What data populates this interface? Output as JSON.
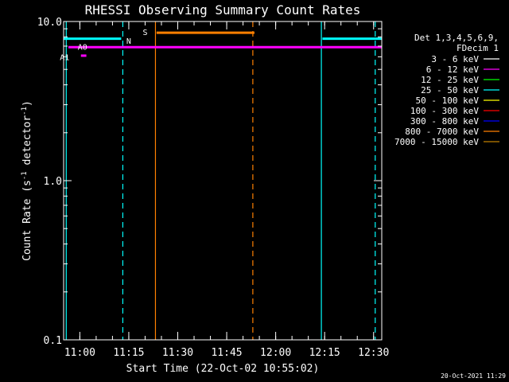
{
  "chart_data": {
    "type": "line",
    "title": "RHESSI Observing Summary Count Rates",
    "xlabel": "Start Time (22-Oct-02 10:55:02)",
    "ylabel_main": "Count Rate (s",
    "ylabel_sup1": "-1",
    "ylabel_mid": " detector",
    "ylabel_sup2": "-1",
    "ylabel_end": ")",
    "yscale": "log",
    "ylim": [
      0.1,
      10.0
    ],
    "xlim": [
      "10:55:02",
      "12:32:30"
    ],
    "y_ticks": [
      {
        "value": 0.1,
        "label": "0.1"
      },
      {
        "value": 1.0,
        "label": "1.0"
      },
      {
        "value": 10.0,
        "label": "10.0"
      }
    ],
    "x_ticks": [
      {
        "time": "11:00",
        "label": "11:00"
      },
      {
        "time": "11:15",
        "label": "11:15"
      },
      {
        "time": "11:30",
        "label": "11:30"
      },
      {
        "time": "11:45",
        "label": "11:45"
      },
      {
        "time": "12:00",
        "label": "12:00"
      },
      {
        "time": "12:15",
        "label": "12:15"
      },
      {
        "time": "12:30",
        "label": "12:30"
      }
    ],
    "legend_header": [
      "Det 1,3,4,5,6,9,",
      "FDecim 1"
    ],
    "series": [
      {
        "name": "3 - 6 keV",
        "color": "#ffffff",
        "segments": []
      },
      {
        "name": "6 - 12 keV",
        "color": "#ff00ff",
        "segments": [
          {
            "x": [
              "10:56:30",
              "12:32:30"
            ],
            "y": [
              6.9,
              6.9
            ]
          },
          {
            "x": [
              "11:00:20",
              "11:02:00"
            ],
            "y": [
              6.1,
              6.1
            ]
          }
        ]
      },
      {
        "name": "12 - 25 keV",
        "color": "#00ff00",
        "segments": []
      },
      {
        "name": "25 - 50 keV",
        "color": "#00ffff",
        "segments": [
          {
            "x": [
              "10:55:02",
              "11:12:40"
            ],
            "y": [
              7.8,
              7.8
            ]
          },
          {
            "x": [
              "12:14:20",
              "12:32:30"
            ],
            "y": [
              7.8,
              7.8
            ]
          }
        ]
      },
      {
        "name": "50 - 100 keV",
        "color": "#ffff00",
        "segments": []
      },
      {
        "name": "100 - 300 keV",
        "color": "#ff0000",
        "segments": []
      },
      {
        "name": "300 - 800 keV",
        "color": "#0000ff",
        "segments": []
      },
      {
        "name": "800 - 7000 keV",
        "color": "#ff8000",
        "segments": [
          {
            "x": [
              "11:23:30",
              "11:53:30"
            ],
            "y": [
              8.5,
              8.5
            ]
          }
        ]
      },
      {
        "name": "7000 - 15000 keV",
        "color": "#c08000",
        "segments": []
      }
    ],
    "vlines": [
      {
        "time": "10:55:50",
        "color": "#00ffff",
        "style": "solid"
      },
      {
        "time": "11:13:10",
        "color": "#00ffff",
        "style": "dashed"
      },
      {
        "time": "11:23:10",
        "color": "#ff8000",
        "style": "solid"
      },
      {
        "time": "11:53:00",
        "color": "#ff8000",
        "style": "dashed"
      },
      {
        "time": "12:14:00",
        "color": "#00ffff",
        "style": "solid"
      },
      {
        "time": "12:30:30",
        "color": "#00ffff",
        "style": "dashed"
      }
    ],
    "annotations": [
      {
        "text": "N",
        "time": "11:15:00",
        "y": 7.6,
        "color": "#00ffff"
      },
      {
        "text": "S",
        "time": "11:20:00",
        "y": 8.6,
        "color": "#ff8000"
      },
      {
        "text": "A0",
        "time": "11:00:50",
        "y": 6.95,
        "color": "#ff00ff"
      },
      {
        "text": "A1",
        "time": "10:55:20",
        "y": 6.0,
        "color": "#ff00ff"
      }
    ]
  },
  "timestamp": "20-Oct-2021 11:29"
}
